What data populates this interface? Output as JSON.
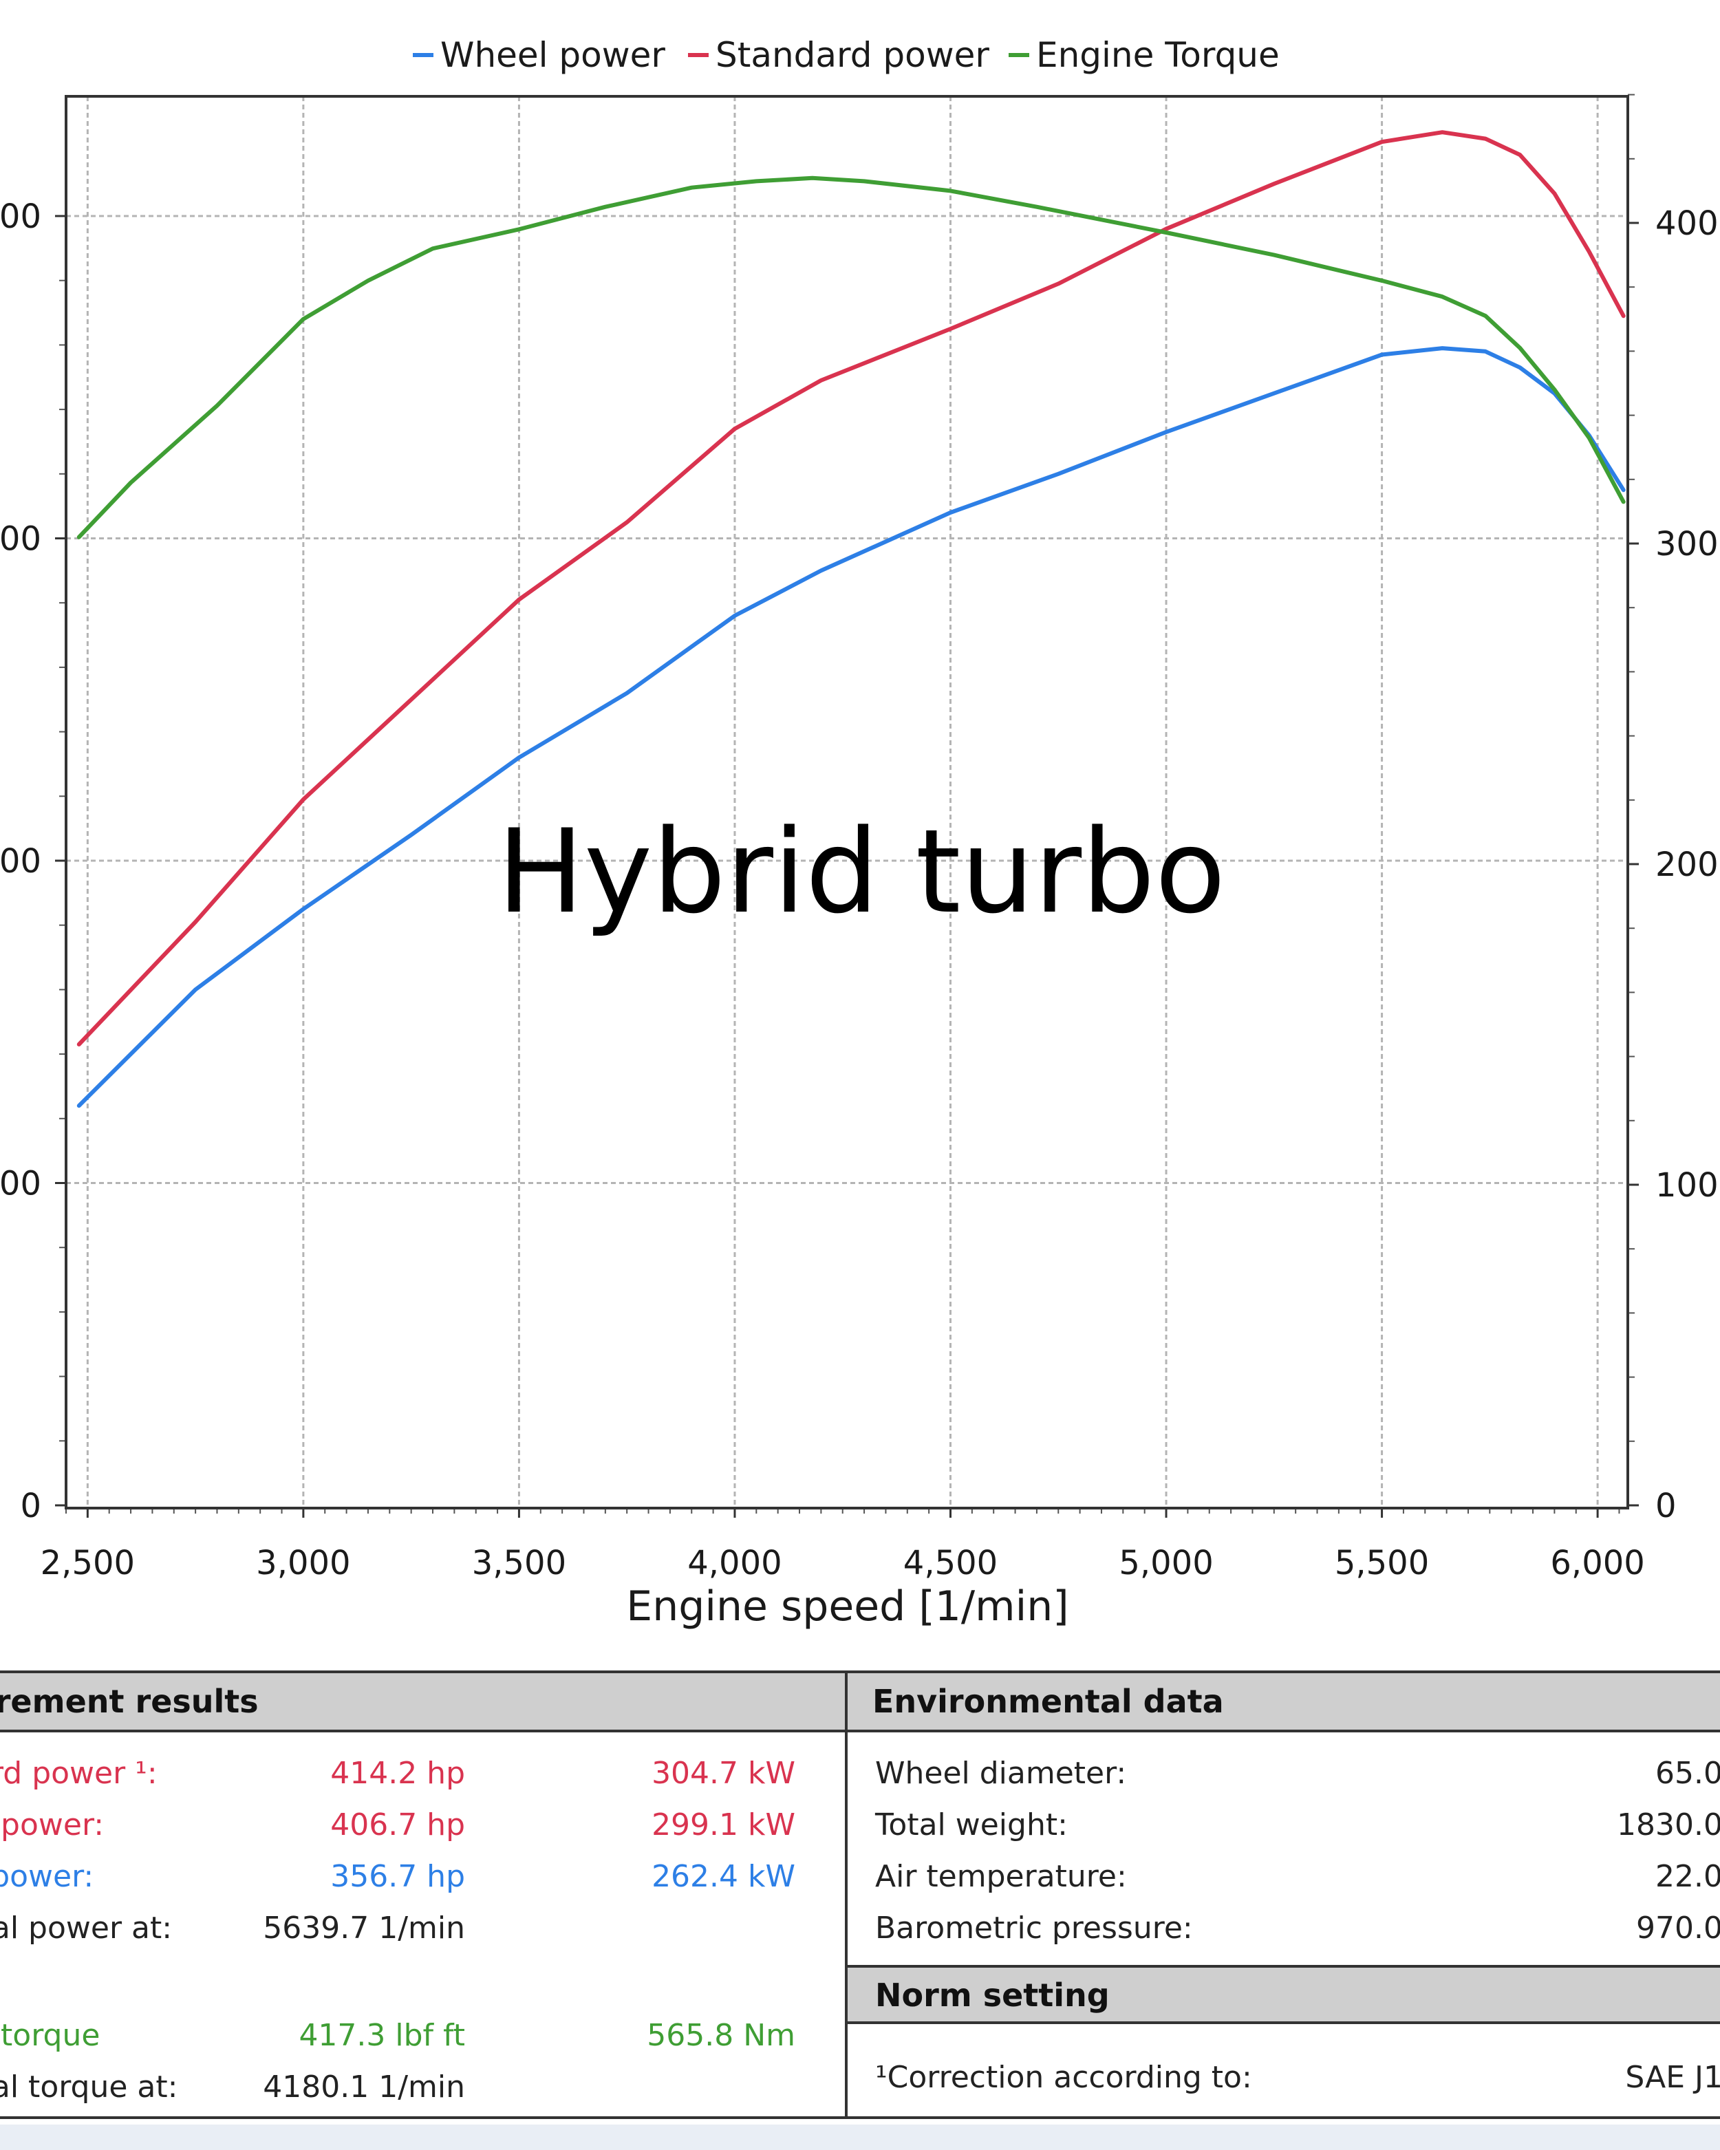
{
  "overlay_text": "Hybrid turbo",
  "chart_data": {
    "type": "line",
    "xlabel": "Engine speed [1/min]",
    "xlim": [
      2450,
      6070
    ],
    "xticks": [
      2500,
      3000,
      3500,
      4000,
      4500,
      5000,
      5500,
      6000
    ],
    "xtick_labels": [
      "2,500",
      "3,000",
      "3,500",
      "4,000",
      "4,500",
      "5,000",
      "5,500",
      "6,000"
    ],
    "y_left": {
      "lim": [
        0,
        400
      ],
      "ticks": [
        0,
        100,
        200,
        300,
        400
      ],
      "tick_labels": [
        "0",
        "00",
        "00",
        "00",
        "00"
      ]
    },
    "y_right": {
      "lim": [
        0,
        400
      ],
      "ticks": [
        0,
        100,
        200,
        300,
        400
      ],
      "tick_labels": [
        "0",
        "100",
        "200",
        "300",
        "400"
      ]
    },
    "grid": true,
    "legend_position": "top",
    "series": [
      {
        "name": "Wheel power",
        "color": "#2d7fe6",
        "axis": "left",
        "x": [
          2480,
          2750,
          3000,
          3250,
          3500,
          3750,
          4000,
          4200,
          4500,
          4750,
          5000,
          5250,
          5500,
          5640,
          5740,
          5820,
          5900,
          5980,
          6060
        ],
        "y": [
          124,
          160,
          185,
          208,
          232,
          252,
          276,
          290,
          308,
          320,
          333,
          345,
          357,
          359,
          358,
          353,
          345,
          332,
          315
        ]
      },
      {
        "name": "Standard power",
        "color": "#d9334f",
        "axis": "left",
        "x": [
          2480,
          2750,
          3000,
          3250,
          3500,
          3750,
          4000,
          4200,
          4500,
          4750,
          5000,
          5250,
          5500,
          5640,
          5740,
          5820,
          5900,
          5980,
          6060
        ],
        "y": [
          143,
          181,
          219,
          250,
          281,
          305,
          334,
          349,
          365,
          379,
          396,
          410,
          423,
          426,
          424,
          419,
          407,
          389,
          369
        ]
      },
      {
        "name": "Engine Torque",
        "color": "#3f9e34",
        "axis": "right",
        "x": [
          2480,
          2600,
          2800,
          3000,
          3150,
          3300,
          3500,
          3700,
          3900,
          4050,
          4180,
          4300,
          4500,
          4700,
          5000,
          5250,
          5500,
          5640,
          5740,
          5820,
          5900,
          5980,
          6060
        ],
        "y": [
          302,
          319,
          343,
          370,
          382,
          392,
          398,
          405,
          411,
          413,
          414,
          413,
          410,
          405,
          397,
          390,
          382,
          377,
          371,
          361,
          348,
          333,
          313
        ]
      }
    ]
  },
  "results_table": {
    "header": "urement results",
    "rows": [
      {
        "label": "ard power ¹:",
        "v1": "414.2 hp",
        "v2": "304.7 kW",
        "color": "red"
      },
      {
        "label": "e power:",
        "v1": "406.7 hp",
        "v2": "299.1 kW",
        "color": "red"
      },
      {
        "label": "l power:",
        "v1": "356.7 hp",
        "v2": "262.4 kW",
        "color": "blue"
      },
      {
        "label": "nal power at:",
        "v1": "5639.7 1/min",
        "v2": "",
        "color": "dark"
      },
      {
        "label": "",
        "v1": "",
        "v2": "",
        "color": "dark"
      },
      {
        "label": "e torque",
        "v1": "417.3 lbf ft",
        "v2": "565.8 Nm",
        "color": "green"
      },
      {
        "label": "nal torque at:",
        "v1": "4180.1 1/min",
        "v2": "",
        "color": "dark"
      }
    ]
  },
  "environment_table": {
    "header": "Environmental data",
    "rows": [
      {
        "label": "Wheel diameter:",
        "value": "65.0"
      },
      {
        "label": "Total weight:",
        "value": "1830.0"
      },
      {
        "label": "Air temperature:",
        "value": "22.0"
      },
      {
        "label": "Barometric pressure:",
        "value": "970.0"
      }
    ],
    "norm_header": "Norm setting",
    "norm_label": "¹Correction according to:",
    "norm_value": "SAE J1"
  }
}
